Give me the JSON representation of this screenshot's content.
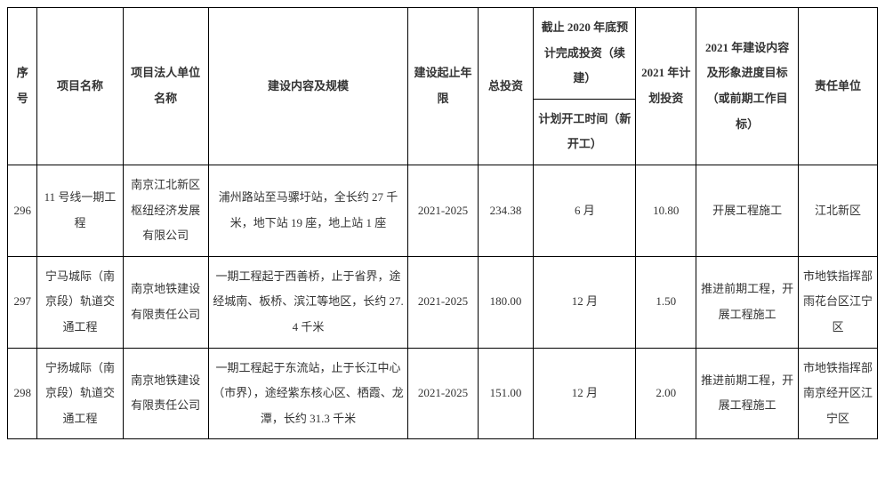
{
  "header": {
    "seq": "序号",
    "name": "项目名称",
    "legal": "项目法人单位名称",
    "content": "建设内容及规模",
    "period": "建设起止年限",
    "totalInvest": "总投资",
    "doneGroup": "截止 2020 年底预计完成投资（续建）",
    "doneSub": "计划开工时间（新开工）",
    "planInvest": "2021 年计划投资",
    "progress": "2021 年建设内容及形象进度目标（或前期工作目标）",
    "resp": "责任单位"
  },
  "rows": [
    {
      "seq": "296",
      "name": "11 号线一期工程",
      "legal": "南京江北新区枢纽经济发展有限公司",
      "content": "浦州路站至马骡圩站，全长约 27 千米，地下站 19 座，地上站 1 座",
      "period": "2021-2025",
      "totalInvest": "234.38",
      "done": "6 月",
      "planInvest": "10.80",
      "progress": "开展工程施工",
      "resp": "江北新区"
    },
    {
      "seq": "297",
      "name": "宁马城际（南京段）轨道交通工程",
      "legal": "南京地铁建设有限责任公司",
      "content": "一期工程起于西善桥，止于省界，途经城南、板桥、滨江等地区，长约 27.4 千米",
      "period": "2021-2025",
      "totalInvest": "180.00",
      "done": "12 月",
      "planInvest": "1.50",
      "progress": "推进前期工程，开展工程施工",
      "resp": "市地铁指挥部雨花台区江宁区"
    },
    {
      "seq": "298",
      "name": "宁扬城际（南京段）轨道交通工程",
      "legal": "南京地铁建设有限责任公司",
      "content": "一期工程起于东流站，止于长江中心（市界），途经紫东核心区、栖霞、龙潭，长约 31.3 千米",
      "period": "2021-2025",
      "totalInvest": "151.00",
      "done": "12 月",
      "planInvest": "2.00",
      "progress": "推进前期工程，开展工程施工",
      "resp": "市地铁指挥部南京经开区江宁区"
    }
  ]
}
